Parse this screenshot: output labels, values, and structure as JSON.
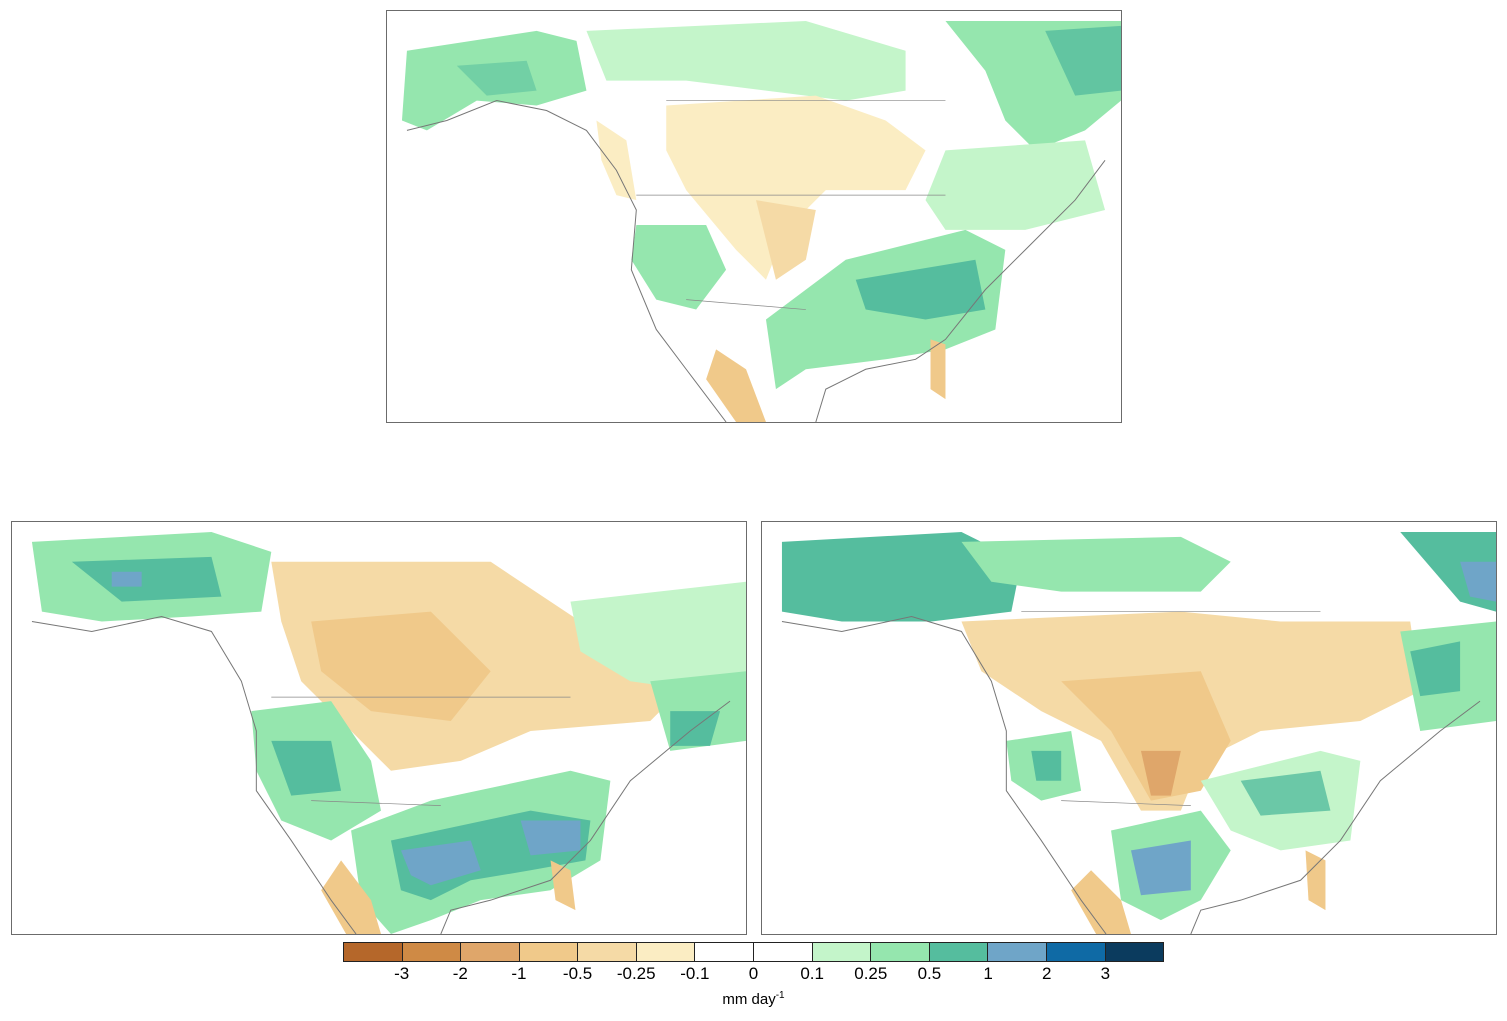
{
  "colorbar": {
    "colors": [
      "#b5672a",
      "#cf8a45",
      "#dfa66a",
      "#f0c98a",
      "#f5daa6",
      "#fbedc3",
      "#ffffff",
      "#ffffff",
      "#c4f5ca",
      "#95e6ae",
      "#55bd9e",
      "#6fa5c8",
      "#0f6aa5",
      "#0b3b5e"
    ],
    "ticks": [
      "-3",
      "-2",
      "-1",
      "-0.5",
      "-0.25",
      "-0.1",
      "0",
      "0.1",
      "0.25",
      "0.5",
      "1",
      "2",
      "3"
    ]
  },
  "units": {
    "base": "mm day",
    "exponent": "-1"
  },
  "icons": [
    "north-america-map-icon"
  ]
}
